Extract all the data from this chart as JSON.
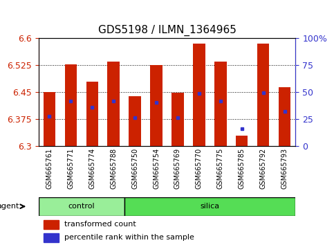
{
  "title": "GDS5198 / ILMN_1364965",
  "samples": [
    "GSM665761",
    "GSM665771",
    "GSM665774",
    "GSM665788",
    "GSM665750",
    "GSM665754",
    "GSM665769",
    "GSM665770",
    "GSM665775",
    "GSM665785",
    "GSM665792",
    "GSM665793"
  ],
  "groups": [
    "control",
    "control",
    "control",
    "control",
    "silica",
    "silica",
    "silica",
    "silica",
    "silica",
    "silica",
    "silica",
    "silica"
  ],
  "bar_top": [
    6.45,
    6.527,
    6.478,
    6.535,
    6.437,
    6.525,
    6.448,
    6.585,
    6.535,
    6.328,
    6.585,
    6.463
  ],
  "bar_bottom": 6.3,
  "blue_y": [
    6.383,
    6.425,
    6.408,
    6.425,
    6.378,
    6.42,
    6.378,
    6.445,
    6.425,
    6.348,
    6.447,
    6.395
  ],
  "ylim_left": [
    6.3,
    6.6
  ],
  "ylim_right": [
    0,
    100
  ],
  "yticks_left": [
    6.3,
    6.375,
    6.45,
    6.525,
    6.6
  ],
  "yticks_right": [
    0,
    25,
    50,
    75,
    100
  ],
  "ytick_labels_right": [
    "0",
    "25",
    "50",
    "75",
    "100%"
  ],
  "bar_color": "#cc2200",
  "blue_color": "#3333cc",
  "grid_color": "#000000",
  "bg_color": "#ffffff",
  "plot_bg": "#ffffff",
  "control_color": "#99ee99",
  "silica_color": "#55dd55",
  "group_labels": [
    "control",
    "silica"
  ],
  "legend_labels": [
    "transformed count",
    "percentile rank within the sample"
  ],
  "axis_label_color_left": "#cc2200",
  "axis_label_color_right": "#3333cc",
  "xlabel_fontsize": 7,
  "tick_fontsize": 9,
  "title_fontsize": 11,
  "n_control": 4,
  "n_silica": 8
}
